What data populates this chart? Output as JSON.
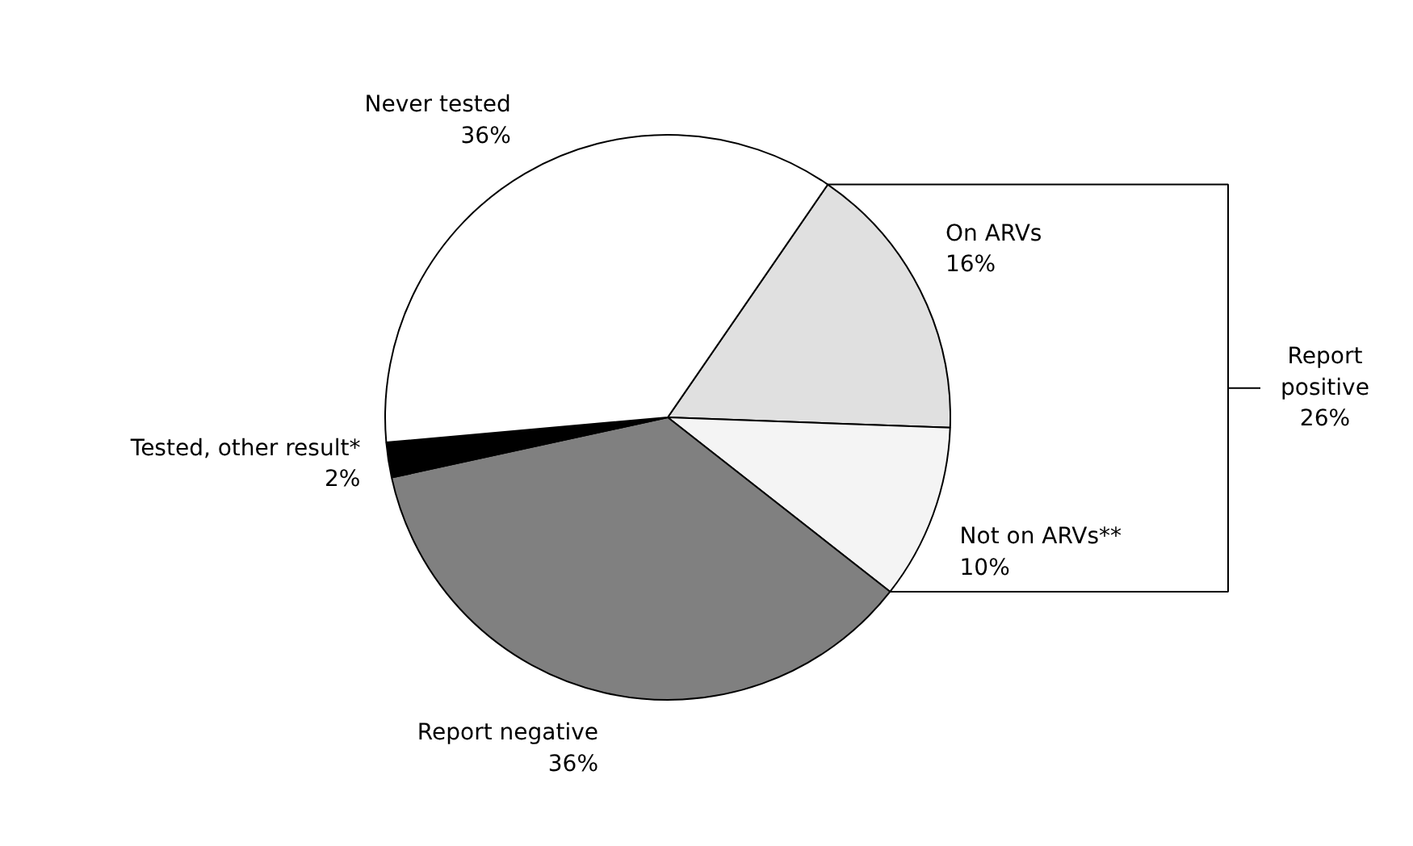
{
  "chart_data": {
    "type": "pie",
    "categories": [
      "On ARVs",
      "Not on ARVs**",
      "Report negative",
      "Tested, other result*",
      "Never tested"
    ],
    "values": [
      16,
      10,
      36,
      2,
      36
    ],
    "colors": [
      "#e0e0e0",
      "#f4f4f4",
      "#808080",
      "#000000",
      "#ffffff"
    ],
    "value_labels": [
      "16%",
      "10%",
      "36%",
      "2%",
      "36%"
    ],
    "annotations": [
      "Report positive 26%"
    ]
  }
}
